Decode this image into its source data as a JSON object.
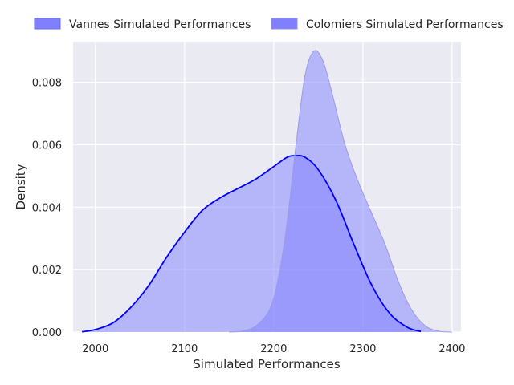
{
  "chart_data": {
    "type": "area",
    "xlabel": "Simulated Performances",
    "ylabel": "Density",
    "xlim": [
      1975,
      2410
    ],
    "ylim": [
      0,
      0.0093
    ],
    "x_ticks": [
      2000,
      2100,
      2200,
      2300,
      2400
    ],
    "x_tick_labels": [
      "2000",
      "2100",
      "2200",
      "2300",
      "2400"
    ],
    "y_ticks": [
      0.0,
      0.002,
      0.004,
      0.006,
      0.008
    ],
    "y_tick_labels": [
      "0.000",
      "0.002",
      "0.004",
      "0.006",
      "0.008"
    ],
    "grid": true,
    "legend_position": "top",
    "series": [
      {
        "name": "Vannes Simulated Performances",
        "color": "#0000ff",
        "fill": "#8080ff",
        "points": [
          [
            1985,
            1e-05
          ],
          [
            2000,
            8e-05
          ],
          [
            2020,
            0.0003
          ],
          [
            2040,
            0.0008
          ],
          [
            2060,
            0.0015
          ],
          [
            2080,
            0.0024
          ],
          [
            2100,
            0.0032
          ],
          [
            2120,
            0.0039
          ],
          [
            2140,
            0.0043
          ],
          [
            2160,
            0.0046
          ],
          [
            2180,
            0.0049
          ],
          [
            2200,
            0.0053
          ],
          [
            2215,
            0.0056
          ],
          [
            2225,
            0.00565
          ],
          [
            2235,
            0.0056
          ],
          [
            2250,
            0.0052
          ],
          [
            2270,
            0.0042
          ],
          [
            2290,
            0.0028
          ],
          [
            2310,
            0.0015
          ],
          [
            2330,
            0.0006
          ],
          [
            2350,
            0.00015
          ],
          [
            2365,
            2e-05
          ]
        ]
      },
      {
        "name": "Colomiers Simulated Performances",
        "color": "#9a9ae8",
        "fill": "#8080ff",
        "points": [
          [
            2150,
            0.0
          ],
          [
            2165,
            3e-05
          ],
          [
            2180,
            0.0002
          ],
          [
            2195,
            0.0007
          ],
          [
            2205,
            0.0017
          ],
          [
            2215,
            0.0035
          ],
          [
            2225,
            0.006
          ],
          [
            2235,
            0.0082
          ],
          [
            2245,
            0.009
          ],
          [
            2255,
            0.0087
          ],
          [
            2265,
            0.0077
          ],
          [
            2280,
            0.006
          ],
          [
            2295,
            0.0048
          ],
          [
            2310,
            0.0038
          ],
          [
            2325,
            0.0028
          ],
          [
            2340,
            0.0016
          ],
          [
            2355,
            0.0007
          ],
          [
            2370,
            0.0002
          ],
          [
            2385,
            3e-05
          ],
          [
            2400,
            0.0
          ]
        ]
      }
    ]
  }
}
